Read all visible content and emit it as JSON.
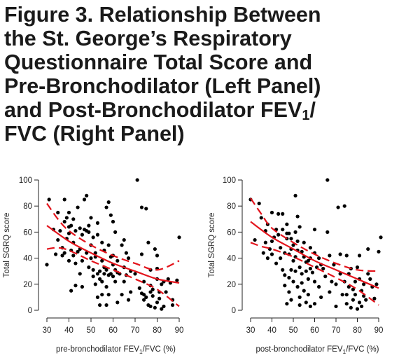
{
  "figure": {
    "title_lines": [
      "Figure 3. Relationship Between",
      "the St. George’s Respiratory",
      "Questionnaire Total Score and",
      "Pre-Bronchodilator (Left Panel)",
      "and Post-Bronchodilator FEV",
      "FVC (Right Panel)"
    ],
    "title_line5_sub": "1",
    "title_line5_after": "/"
  },
  "chart_data": [
    {
      "type": "scatter",
      "panel": "left",
      "ylabel": "Total SGRQ score",
      "xlabel_before": "pre-bronchodilator FEV",
      "xlabel_sub": "1",
      "xlabel_after": "/FVC (%)",
      "xlim": [
        30,
        90
      ],
      "ylim": [
        0,
        100
      ],
      "xticks": [
        30,
        40,
        50,
        60,
        70,
        80,
        90
      ],
      "yticks": [
        0,
        20,
        40,
        60,
        80,
        100
      ],
      "point_color": "#000000",
      "line_color": "#e3141c",
      "points": [
        [
          30,
          35
        ],
        [
          31,
          85
        ],
        [
          33,
          62
        ],
        [
          34,
          43
        ],
        [
          35,
          75
        ],
        [
          35,
          54
        ],
        [
          36,
          61
        ],
        [
          37,
          42
        ],
        [
          37,
          48
        ],
        [
          38,
          44
        ],
        [
          38,
          68
        ],
        [
          38,
          85
        ],
        [
          39,
          71
        ],
        [
          39,
          55
        ],
        [
          40,
          38
        ],
        [
          40,
          59
        ],
        [
          40,
          64
        ],
        [
          40,
          75
        ],
        [
          41,
          15
        ],
        [
          41,
          65
        ],
        [
          41,
          46
        ],
        [
          42,
          70
        ],
        [
          42,
          52
        ],
        [
          42,
          42
        ],
        [
          43,
          19
        ],
        [
          43,
          61
        ],
        [
          43,
          36
        ],
        [
          44,
          45
        ],
        [
          44,
          79
        ],
        [
          45,
          63
        ],
        [
          45,
          47
        ],
        [
          45,
          28
        ],
        [
          46,
          58
        ],
        [
          46,
          38
        ],
        [
          46,
          18
        ],
        [
          47,
          62
        ],
        [
          47,
          85
        ],
        [
          48,
          88
        ],
        [
          48,
          61
        ],
        [
          48,
          44
        ],
        [
          49,
          65
        ],
        [
          49,
          33
        ],
        [
          49,
          60
        ],
        [
          50,
          71
        ],
        [
          50,
          50
        ],
        [
          50,
          40
        ],
        [
          51,
          26
        ],
        [
          51,
          56
        ],
        [
          51,
          31
        ],
        [
          52,
          20
        ],
        [
          52,
          41
        ],
        [
          52,
          44
        ],
        [
          53,
          28
        ],
        [
          53,
          67
        ],
        [
          53,
          10
        ],
        [
          53,
          58
        ],
        [
          54,
          24
        ],
        [
          54,
          4
        ],
        [
          54,
          30
        ],
        [
          55,
          38
        ],
        [
          55,
          22
        ],
        [
          55,
          52
        ],
        [
          55,
          12
        ],
        [
          56,
          33
        ],
        [
          56,
          46
        ],
        [
          56,
          28
        ],
        [
          57,
          79
        ],
        [
          57,
          31
        ],
        [
          57,
          18
        ],
        [
          57,
          4
        ],
        [
          58,
          83
        ],
        [
          58,
          50
        ],
        [
          58,
          27
        ],
        [
          58,
          12
        ],
        [
          59,
          73
        ],
        [
          59,
          41
        ],
        [
          59,
          28
        ],
        [
          60,
          42
        ],
        [
          60,
          68
        ],
        [
          60,
          35
        ],
        [
          60,
          26
        ],
        [
          61,
          22
        ],
        [
          61,
          31
        ],
        [
          61,
          60
        ],
        [
          62,
          6
        ],
        [
          62,
          38
        ],
        [
          62,
          29
        ],
        [
          63,
          28
        ],
        [
          64,
          50
        ],
        [
          64,
          12
        ],
        [
          65,
          54
        ],
        [
          65,
          33
        ],
        [
          65,
          22
        ],
        [
          66,
          27
        ],
        [
          66,
          44
        ],
        [
          67,
          8
        ],
        [
          67,
          40
        ],
        [
          68,
          14
        ],
        [
          68,
          30
        ],
        [
          70,
          28
        ],
        [
          71,
          100
        ],
        [
          72,
          17
        ],
        [
          73,
          79
        ],
        [
          73,
          13
        ],
        [
          73,
          43
        ],
        [
          74,
          12
        ],
        [
          74,
          22
        ],
        [
          74,
          8
        ],
        [
          75,
          78
        ],
        [
          75,
          10
        ],
        [
          76,
          52
        ],
        [
          76,
          4
        ],
        [
          77,
          31
        ],
        [
          77,
          19
        ],
        [
          77,
          14
        ],
        [
          77,
          3
        ],
        [
          78,
          16
        ],
        [
          78,
          11
        ],
        [
          79,
          2
        ],
        [
          79,
          47
        ],
        [
          80,
          42
        ],
        [
          80,
          32
        ],
        [
          80,
          24
        ],
        [
          80,
          6
        ],
        [
          81,
          14
        ],
        [
          81,
          9
        ],
        [
          82,
          20
        ],
        [
          82,
          1
        ],
        [
          83,
          3
        ],
        [
          83,
          22
        ],
        [
          84,
          14
        ],
        [
          85,
          24
        ],
        [
          86,
          21
        ],
        [
          87,
          8
        ],
        [
          87,
          4
        ],
        [
          89,
          23
        ],
        [
          90,
          56
        ]
      ],
      "fit": [
        [
          30,
          65
        ],
        [
          40,
          53
        ],
        [
          50,
          44
        ],
        [
          60,
          36
        ],
        [
          70,
          30
        ],
        [
          80,
          24
        ],
        [
          90,
          21
        ]
      ],
      "ci_upper": [
        [
          30,
          82
        ],
        [
          35,
          70
        ],
        [
          40,
          61
        ],
        [
          50,
          50
        ],
        [
          60,
          42
        ],
        [
          70,
          36
        ],
        [
          80,
          31
        ],
        [
          90,
          38
        ]
      ],
      "ci_lower": [
        [
          30,
          47
        ],
        [
          35,
          48
        ],
        [
          40,
          46
        ],
        [
          50,
          38
        ],
        [
          60,
          31
        ],
        [
          70,
          24
        ],
        [
          80,
          16
        ],
        [
          90,
          3
        ]
      ]
    },
    {
      "type": "scatter",
      "panel": "right",
      "ylabel": "Total SGRQ score",
      "xlabel_before": "post-bronchodilator FEV",
      "xlabel_sub": "1",
      "xlabel_after": "/FVC (%)",
      "xlim": [
        30,
        90
      ],
      "ylim": [
        0,
        100
      ],
      "xticks": [
        30,
        40,
        50,
        60,
        70,
        80,
        90
      ],
      "yticks": [
        0,
        20,
        40,
        60,
        80,
        100
      ],
      "point_color": "#000000",
      "line_color": "#e3141c",
      "points": [
        [
          30,
          85
        ],
        [
          32,
          54
        ],
        [
          34,
          82
        ],
        [
          35,
          71
        ],
        [
          36,
          44
        ],
        [
          37,
          61
        ],
        [
          37,
          52
        ],
        [
          38,
          40
        ],
        [
          38,
          66
        ],
        [
          39,
          47
        ],
        [
          40,
          75
        ],
        [
          40,
          53
        ],
        [
          40,
          43
        ],
        [
          41,
          56
        ],
        [
          42,
          62
        ],
        [
          42,
          36
        ],
        [
          43,
          74
        ],
        [
          43,
          58
        ],
        [
          44,
          48
        ],
        [
          44,
          40
        ],
        [
          45,
          74
        ],
        [
          45,
          62
        ],
        [
          45,
          31
        ],
        [
          46,
          44
        ],
        [
          46,
          27
        ],
        [
          46,
          19
        ],
        [
          47,
          66
        ],
        [
          47,
          59
        ],
        [
          47,
          55
        ],
        [
          47,
          5
        ],
        [
          48,
          59
        ],
        [
          48,
          43
        ],
        [
          48,
          25
        ],
        [
          48,
          14
        ],
        [
          49,
          55
        ],
        [
          49,
          47
        ],
        [
          49,
          31
        ],
        [
          49,
          8
        ],
        [
          50,
          50
        ],
        [
          50,
          38
        ],
        [
          50,
          22
        ],
        [
          51,
          88
        ],
        [
          51,
          60
        ],
        [
          51,
          41
        ],
        [
          51,
          30
        ],
        [
          52,
          72
        ],
        [
          52,
          53
        ],
        [
          52,
          46
        ],
        [
          52,
          18
        ],
        [
          53,
          33
        ],
        [
          53,
          64
        ],
        [
          53,
          10
        ],
        [
          53,
          4
        ],
        [
          54,
          45
        ],
        [
          54,
          28
        ],
        [
          54,
          21
        ],
        [
          55,
          41
        ],
        [
          55,
          52
        ],
        [
          55,
          15
        ],
        [
          56,
          30
        ],
        [
          56,
          37
        ],
        [
          56,
          6
        ],
        [
          57,
          38
        ],
        [
          57,
          24
        ],
        [
          57,
          12
        ],
        [
          58,
          48
        ],
        [
          58,
          40
        ],
        [
          58,
          32
        ],
        [
          58,
          3
        ],
        [
          59,
          29
        ],
        [
          60,
          22
        ],
        [
          60,
          44
        ],
        [
          60,
          62
        ],
        [
          60,
          5
        ],
        [
          61,
          33
        ],
        [
          62,
          18
        ],
        [
          62,
          40
        ],
        [
          63,
          35
        ],
        [
          63,
          10
        ],
        [
          64,
          32
        ],
        [
          65,
          26
        ],
        [
          66,
          100
        ],
        [
          66,
          60
        ],
        [
          67,
          14
        ],
        [
          67,
          42
        ],
        [
          68,
          22
        ],
        [
          69,
          35
        ],
        [
          70,
          20
        ],
        [
          70,
          3
        ],
        [
          71,
          79
        ],
        [
          72,
          43
        ],
        [
          72,
          28
        ],
        [
          73,
          12
        ],
        [
          74,
          80
        ],
        [
          74,
          22
        ],
        [
          75,
          12
        ],
        [
          75,
          42
        ],
        [
          75,
          5
        ],
        [
          76,
          28
        ],
        [
          76,
          18
        ],
        [
          77,
          2
        ],
        [
          77,
          32
        ],
        [
          78,
          16
        ],
        [
          78,
          8
        ],
        [
          79,
          22
        ],
        [
          79,
          12
        ],
        [
          80,
          33
        ],
        [
          80,
          1
        ],
        [
          81,
          42
        ],
        [
          81,
          24
        ],
        [
          81,
          6
        ],
        [
          82,
          15
        ],
        [
          82,
          3
        ],
        [
          83,
          11
        ],
        [
          83,
          20
        ],
        [
          84,
          8
        ],
        [
          85,
          47
        ],
        [
          85,
          28
        ],
        [
          86,
          24
        ],
        [
          87,
          18
        ],
        [
          88,
          9
        ],
        [
          89,
          20
        ],
        [
          90,
          45
        ],
        [
          91,
          56
        ]
      ],
      "fit": [
        [
          30,
          68
        ],
        [
          40,
          56
        ],
        [
          50,
          47
        ],
        [
          60,
          38
        ],
        [
          70,
          31
        ],
        [
          80,
          24
        ],
        [
          90,
          17
        ]
      ],
      "ci_upper": [
        [
          30,
          86
        ],
        [
          35,
          74
        ],
        [
          40,
          63
        ],
        [
          50,
          52
        ],
        [
          60,
          43
        ],
        [
          70,
          36
        ],
        [
          80,
          31
        ],
        [
          90,
          30
        ]
      ],
      "ci_lower": [
        [
          30,
          52
        ],
        [
          35,
          49
        ],
        [
          40,
          47
        ],
        [
          50,
          41
        ],
        [
          60,
          33
        ],
        [
          70,
          25
        ],
        [
          80,
          16
        ],
        [
          90,
          4
        ]
      ]
    }
  ]
}
